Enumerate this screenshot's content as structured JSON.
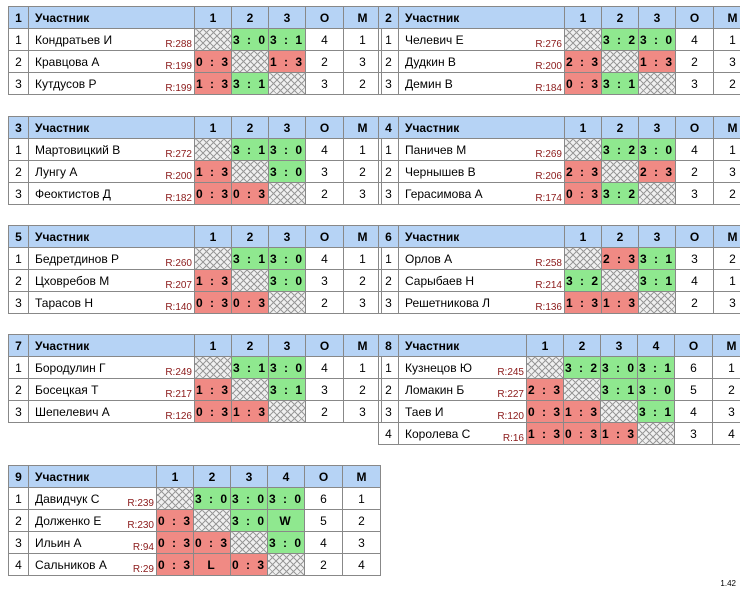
{
  "header": {
    "participant": "Участник",
    "points": "О",
    "place": "М"
  },
  "groups": [
    {
      "id": "g1",
      "number": "1",
      "cols": [
        "1",
        "2",
        "3"
      ],
      "players": [
        {
          "num": "1",
          "name": "Кондратьев И",
          "rating": "R:288",
          "cells": [
            {
              "t": "",
              "k": "self"
            },
            {
              "t": "3 : 0",
              "k": "win"
            },
            {
              "t": "3 : 1",
              "k": "win"
            }
          ],
          "points": "4",
          "place": "1"
        },
        {
          "num": "2",
          "name": "Кравцова А",
          "rating": "R:199",
          "cells": [
            {
              "t": "0 : 3",
              "k": "loss"
            },
            {
              "t": "",
              "k": "self"
            },
            {
              "t": "1 : 3",
              "k": "loss"
            }
          ],
          "points": "2",
          "place": "3"
        },
        {
          "num": "3",
          "name": "Кутдусов Р",
          "rating": "R:199",
          "cells": [
            {
              "t": "1 : 3",
              "k": "loss"
            },
            {
              "t": "3 : 1",
              "k": "win"
            },
            {
              "t": "",
              "k": "self"
            }
          ],
          "points": "3",
          "place": "2"
        }
      ]
    },
    {
      "id": "g2",
      "number": "2",
      "cols": [
        "1",
        "2",
        "3"
      ],
      "players": [
        {
          "num": "1",
          "name": "Челевич Е",
          "rating": "R:276",
          "cells": [
            {
              "t": "",
              "k": "self"
            },
            {
              "t": "3 : 2",
              "k": "win"
            },
            {
              "t": "3 : 0",
              "k": "win"
            }
          ],
          "points": "4",
          "place": "1"
        },
        {
          "num": "2",
          "name": "Дудкин В",
          "rating": "R:200",
          "cells": [
            {
              "t": "2 : 3",
              "k": "loss"
            },
            {
              "t": "",
              "k": "self"
            },
            {
              "t": "1 : 3",
              "k": "loss"
            }
          ],
          "points": "2",
          "place": "3"
        },
        {
          "num": "3",
          "name": "Демин В",
          "rating": "R:184",
          "cells": [
            {
              "t": "0 : 3",
              "k": "loss"
            },
            {
              "t": "3 : 1",
              "k": "win"
            },
            {
              "t": "",
              "k": "self"
            }
          ],
          "points": "3",
          "place": "2"
        }
      ]
    },
    {
      "id": "g3",
      "number": "3",
      "cols": [
        "1",
        "2",
        "3"
      ],
      "players": [
        {
          "num": "1",
          "name": "Мартовицкий В",
          "rating": "R:272",
          "cells": [
            {
              "t": "",
              "k": "self"
            },
            {
              "t": "3 : 1",
              "k": "win"
            },
            {
              "t": "3 : 0",
              "k": "win"
            }
          ],
          "points": "4",
          "place": "1"
        },
        {
          "num": "2",
          "name": "Лунгу А",
          "rating": "R:200",
          "cells": [
            {
              "t": "1 : 3",
              "k": "loss"
            },
            {
              "t": "",
              "k": "self"
            },
            {
              "t": "3 : 0",
              "k": "win"
            }
          ],
          "points": "3",
          "place": "2"
        },
        {
          "num": "3",
          "name": "Феоктистов Д",
          "rating": "R:182",
          "cells": [
            {
              "t": "0 : 3",
              "k": "loss"
            },
            {
              "t": "0 : 3",
              "k": "loss"
            },
            {
              "t": "",
              "k": "self"
            }
          ],
          "points": "2",
          "place": "3"
        }
      ]
    },
    {
      "id": "g4",
      "number": "4",
      "cols": [
        "1",
        "2",
        "3"
      ],
      "players": [
        {
          "num": "1",
          "name": "Паничев М",
          "rating": "R:269",
          "cells": [
            {
              "t": "",
              "k": "self"
            },
            {
              "t": "3 : 2",
              "k": "win"
            },
            {
              "t": "3 : 0",
              "k": "win"
            }
          ],
          "points": "4",
          "place": "1"
        },
        {
          "num": "2",
          "name": "Чернышев В",
          "rating": "R:206",
          "cells": [
            {
              "t": "2 : 3",
              "k": "loss"
            },
            {
              "t": "",
              "k": "self"
            },
            {
              "t": "2 : 3",
              "k": "loss"
            }
          ],
          "points": "2",
          "place": "3"
        },
        {
          "num": "3",
          "name": "Герасимова А",
          "rating": "R:174",
          "cells": [
            {
              "t": "0 : 3",
              "k": "loss"
            },
            {
              "t": "3 : 2",
              "k": "win"
            },
            {
              "t": "",
              "k": "self"
            }
          ],
          "points": "3",
          "place": "2"
        }
      ]
    },
    {
      "id": "g5",
      "number": "5",
      "cols": [
        "1",
        "2",
        "3"
      ],
      "players": [
        {
          "num": "1",
          "name": "Бедретдинов Р",
          "rating": "R:260",
          "cells": [
            {
              "t": "",
              "k": "self"
            },
            {
              "t": "3 : 1",
              "k": "win"
            },
            {
              "t": "3 : 0",
              "k": "win"
            }
          ],
          "points": "4",
          "place": "1"
        },
        {
          "num": "2",
          "name": "Цховребов М",
          "rating": "R:207",
          "cells": [
            {
              "t": "1 : 3",
              "k": "loss"
            },
            {
              "t": "",
              "k": "self"
            },
            {
              "t": "3 : 0",
              "k": "win"
            }
          ],
          "points": "3",
          "place": "2"
        },
        {
          "num": "3",
          "name": "Тарасов Н",
          "rating": "R:140",
          "cells": [
            {
              "t": "0 : 3",
              "k": "loss"
            },
            {
              "t": "0 : 3",
              "k": "loss"
            },
            {
              "t": "",
              "k": "self"
            }
          ],
          "points": "2",
          "place": "3"
        }
      ]
    },
    {
      "id": "g6",
      "number": "6",
      "cols": [
        "1",
        "2",
        "3"
      ],
      "players": [
        {
          "num": "1",
          "name": "Орлов А",
          "rating": "R:258",
          "cells": [
            {
              "t": "",
              "k": "self"
            },
            {
              "t": "2 : 3",
              "k": "loss"
            },
            {
              "t": "3 : 1",
              "k": "win"
            }
          ],
          "points": "3",
          "place": "2"
        },
        {
          "num": "2",
          "name": "Сарыбаев Н",
          "rating": "R:214",
          "cells": [
            {
              "t": "3 : 2",
              "k": "win"
            },
            {
              "t": "",
              "k": "self"
            },
            {
              "t": "3 : 1",
              "k": "win"
            }
          ],
          "points": "4",
          "place": "1"
        },
        {
          "num": "3",
          "name": "Решетникова Л",
          "rating": "R:136",
          "cells": [
            {
              "t": "1 : 3",
              "k": "loss"
            },
            {
              "t": "1 : 3",
              "k": "loss"
            },
            {
              "t": "",
              "k": "self"
            }
          ],
          "points": "2",
          "place": "3"
        }
      ]
    },
    {
      "id": "g7",
      "number": "7",
      "cols": [
        "1",
        "2",
        "3"
      ],
      "players": [
        {
          "num": "1",
          "name": "Бородулин Г",
          "rating": "R:249",
          "cells": [
            {
              "t": "",
              "k": "self"
            },
            {
              "t": "3 : 1",
              "k": "win"
            },
            {
              "t": "3 : 0",
              "k": "win"
            }
          ],
          "points": "4",
          "place": "1"
        },
        {
          "num": "2",
          "name": "Босецкая Т",
          "rating": "R:217",
          "cells": [
            {
              "t": "1 : 3",
              "k": "loss"
            },
            {
              "t": "",
              "k": "self"
            },
            {
              "t": "3 : 1",
              "k": "win"
            }
          ],
          "points": "3",
          "place": "2"
        },
        {
          "num": "3",
          "name": "Шепелевич А",
          "rating": "R:126",
          "cells": [
            {
              "t": "0 : 3",
              "k": "loss"
            },
            {
              "t": "1 : 3",
              "k": "loss"
            },
            {
              "t": "",
              "k": "self"
            }
          ],
          "points": "2",
          "place": "3"
        }
      ]
    },
    {
      "id": "g8",
      "number": "8",
      "cols": [
        "1",
        "2",
        "3",
        "4"
      ],
      "players": [
        {
          "num": "1",
          "name": "Кузнецов Ю",
          "rating": "R:245",
          "cells": [
            {
              "t": "",
              "k": "self"
            },
            {
              "t": "3 : 2",
              "k": "win"
            },
            {
              "t": "3 : 0",
              "k": "win"
            },
            {
              "t": "3 : 1",
              "k": "win"
            }
          ],
          "points": "6",
          "place": "1"
        },
        {
          "num": "2",
          "name": "Ломакин Б",
          "rating": "R:227",
          "cells": [
            {
              "t": "2 : 3",
              "k": "loss"
            },
            {
              "t": "",
              "k": "self"
            },
            {
              "t": "3 : 1",
              "k": "win"
            },
            {
              "t": "3 : 0",
              "k": "win"
            }
          ],
          "points": "5",
          "place": "2"
        },
        {
          "num": "3",
          "name": "Таев И",
          "rating": "R:120",
          "cells": [
            {
              "t": "0 : 3",
              "k": "loss"
            },
            {
              "t": "1 : 3",
              "k": "loss"
            },
            {
              "t": "",
              "k": "self"
            },
            {
              "t": "3 : 1",
              "k": "win"
            }
          ],
          "points": "4",
          "place": "3"
        },
        {
          "num": "4",
          "name": "Королева С",
          "rating": "R:16",
          "cells": [
            {
              "t": "1 : 3",
              "k": "loss"
            },
            {
              "t": "0 : 3",
              "k": "loss"
            },
            {
              "t": "1 : 3",
              "k": "loss"
            },
            {
              "t": "",
              "k": "self"
            }
          ],
          "points": "3",
          "place": "4"
        }
      ]
    },
    {
      "id": "g9",
      "number": "9",
      "cols": [
        "1",
        "2",
        "3",
        "4"
      ],
      "players": [
        {
          "num": "1",
          "name": "Давидчук С",
          "rating": "R:239",
          "cells": [
            {
              "t": "",
              "k": "self"
            },
            {
              "t": "3 : 0",
              "k": "win"
            },
            {
              "t": "3 : 0",
              "k": "win"
            },
            {
              "t": "3 : 0",
              "k": "win"
            }
          ],
          "points": "6",
          "place": "1"
        },
        {
          "num": "2",
          "name": "Долженко Е",
          "rating": "R:230",
          "cells": [
            {
              "t": "0 : 3",
              "k": "loss"
            },
            {
              "t": "",
              "k": "self"
            },
            {
              "t": "3 : 0",
              "k": "win"
            },
            {
              "t": "W",
              "k": "win"
            }
          ],
          "points": "5",
          "place": "2"
        },
        {
          "num": "3",
          "name": "Ильин А",
          "rating": "R:94",
          "cells": [
            {
              "t": "0 : 3",
              "k": "loss"
            },
            {
              "t": "0 : 3",
              "k": "loss"
            },
            {
              "t": "",
              "k": "self"
            },
            {
              "t": "3 : 0",
              "k": "win"
            }
          ],
          "points": "4",
          "place": "3"
        },
        {
          "num": "4",
          "name": "Сальников А",
          "rating": "R:29",
          "cells": [
            {
              "t": "0 : 3",
              "k": "loss"
            },
            {
              "t": "L",
              "k": "loss"
            },
            {
              "t": "0 : 3",
              "k": "loss"
            },
            {
              "t": "",
              "k": "self"
            }
          ],
          "points": "2",
          "place": "4"
        }
      ]
    }
  ],
  "version": "1.42",
  "colors": {
    "header": "#b6d3f5",
    "win": "#8fe88f",
    "loss": "#f08a84"
  }
}
